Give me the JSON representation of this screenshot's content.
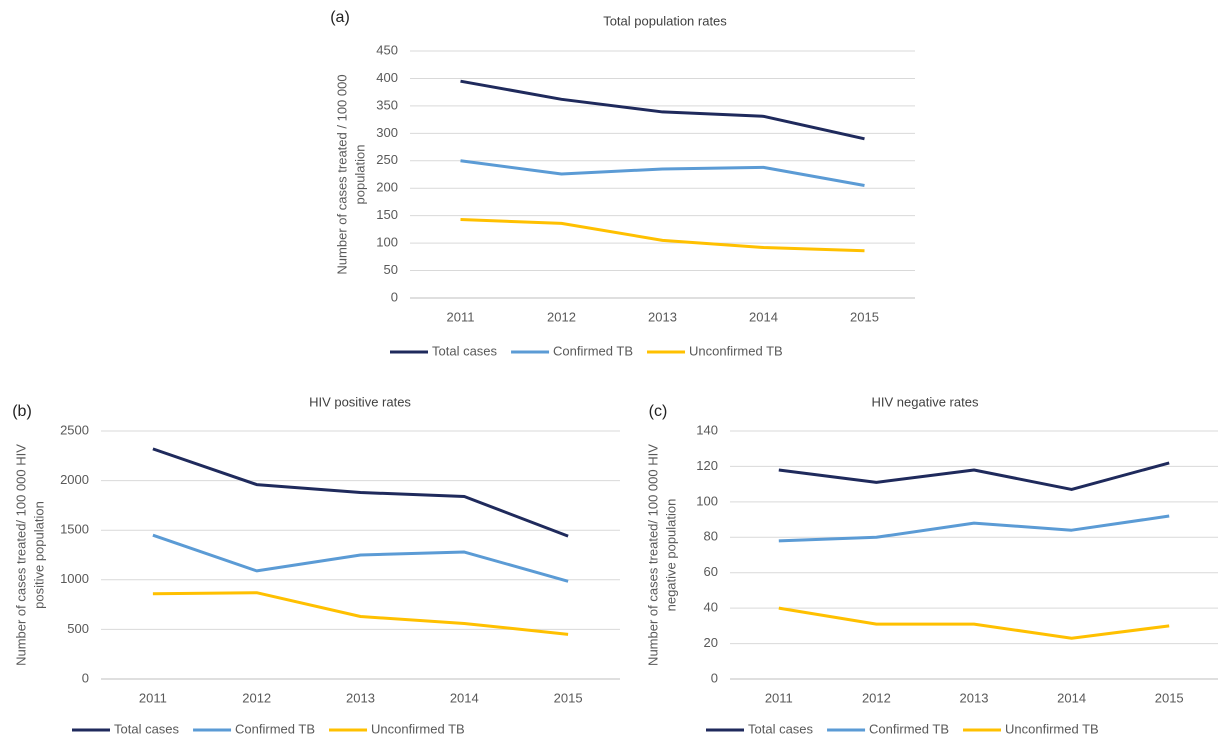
{
  "chart_data": [
    {
      "type": "line",
      "panel_label": "(a)",
      "title": "Total population rates",
      "ylabel": [
        "Number of cases treated / 100 000",
        "population"
      ],
      "categories": [
        "2011",
        "2012",
        "2013",
        "2014",
        "2015"
      ],
      "ylim": [
        0,
        450
      ],
      "yticks": [
        0,
        50,
        100,
        150,
        200,
        250,
        300,
        350,
        400,
        450
      ],
      "grid": true,
      "legend": "bottom",
      "series": [
        {
          "name": "Total cases",
          "color": "#1f2a5c",
          "values": [
            395,
            362,
            339,
            331,
            290
          ]
        },
        {
          "name": "Confirmed TB",
          "color": "#5b9bd5",
          "values": [
            250,
            226,
            235,
            238,
            205
          ]
        },
        {
          "name": "Unconfirmed TB",
          "color": "#ffc000",
          "values": [
            143,
            136,
            105,
            92,
            86
          ]
        }
      ]
    },
    {
      "type": "line",
      "panel_label": "(b)",
      "title": "HIV positive rates",
      "ylabel": [
        "Number of cases treated/ 100 000 HIV",
        "positive population"
      ],
      "categories": [
        "2011",
        "2012",
        "2013",
        "2014",
        "2015"
      ],
      "ylim": [
        0,
        2500
      ],
      "yticks": [
        0,
        500,
        1000,
        1500,
        2000,
        2500
      ],
      "grid": true,
      "legend": "bottom",
      "series": [
        {
          "name": "Total cases",
          "color": "#1f2a5c",
          "values": [
            2320,
            1960,
            1880,
            1840,
            1440
          ]
        },
        {
          "name": "Confirmed TB",
          "color": "#5b9bd5",
          "values": [
            1450,
            1090,
            1250,
            1280,
            985
          ]
        },
        {
          "name": "Unconfirmed TB",
          "color": "#ffc000",
          "values": [
            860,
            870,
            630,
            560,
            450
          ]
        }
      ]
    },
    {
      "type": "line",
      "panel_label": "(c)",
      "title": "HIV negative rates",
      "ylabel": [
        "Number of cases treated/ 100 000 HIV",
        "negative population"
      ],
      "categories": [
        "2011",
        "2012",
        "2013",
        "2014",
        "2015"
      ],
      "ylim": [
        0,
        140
      ],
      "yticks": [
        0,
        20,
        40,
        60,
        80,
        100,
        120,
        140
      ],
      "grid": true,
      "legend": "bottom",
      "series": [
        {
          "name": "Total cases",
          "color": "#1f2a5c",
          "values": [
            118,
            111,
            118,
            107,
            122
          ]
        },
        {
          "name": "Confirmed TB",
          "color": "#5b9bd5",
          "values": [
            78,
            80,
            88,
            84,
            92
          ]
        },
        {
          "name": "Unconfirmed TB",
          "color": "#ffc000",
          "values": [
            40,
            31,
            31,
            23,
            30
          ]
        }
      ]
    }
  ]
}
